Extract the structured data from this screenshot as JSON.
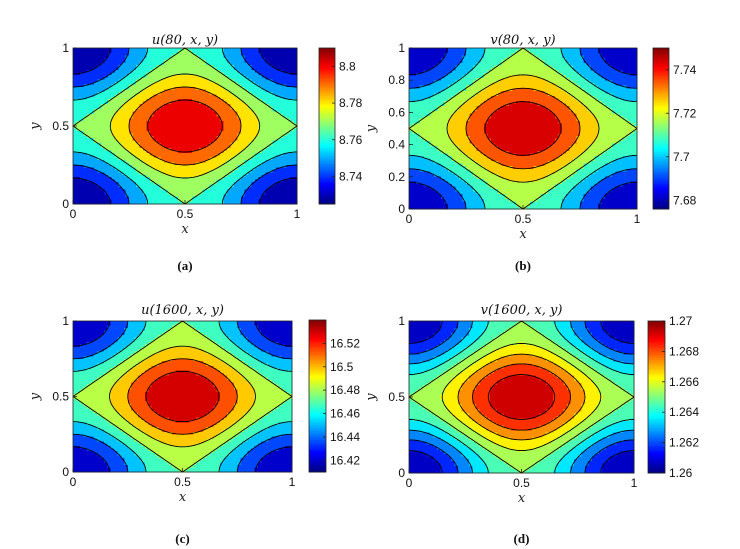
{
  "chart_data": [
    {
      "type": "heatmap",
      "panel": "a",
      "title": "u(80, x, y)",
      "xlabel": "x",
      "ylabel": "y",
      "caption": "(a)",
      "xlim": [
        0,
        1
      ],
      "ylim": [
        0,
        1
      ],
      "xticks": [
        "0",
        "0.5",
        "1"
      ],
      "yticks": [
        "0",
        "0.5",
        "1"
      ],
      "colorbar": {
        "range": [
          8.725,
          8.81
        ],
        "ticks": [
          "8.74",
          "8.76",
          "8.78",
          "8.8"
        ],
        "tick_values": [
          8.74,
          8.76,
          8.78,
          8.8
        ]
      },
      "field": {
        "center": 8.806,
        "corner": 8.724,
        "form": "sinusoidal, maximum at (0.5, 0.5), minima at corners"
      },
      "levels": 8
    },
    {
      "type": "heatmap",
      "panel": "b",
      "title": "v(80, x, y)",
      "xlabel": "x",
      "ylabel": "y",
      "caption": "(b)",
      "xlim": [
        0,
        1
      ],
      "ylim": [
        0,
        1
      ],
      "xticks": [
        "0",
        "0.5",
        "1"
      ],
      "yticks": [
        "0",
        "0.2",
        "0.4",
        "0.6",
        "0.8",
        "1"
      ],
      "colorbar": {
        "range": [
          7.676,
          7.75
        ],
        "ticks": [
          "7.68",
          "7.7",
          "7.72",
          "7.74"
        ],
        "tick_values": [
          7.68,
          7.7,
          7.72,
          7.74
        ]
      },
      "field": {
        "center": 7.748,
        "corner": 7.677,
        "form": "sinusoidal, maximum at (0.5, 0.5), minima at corners"
      },
      "levels": 8
    },
    {
      "type": "heatmap",
      "panel": "c",
      "title": "u(1600, x, y)",
      "xlabel": "x",
      "ylabel": "y",
      "caption": "(c)",
      "xlim": [
        0,
        1
      ],
      "ylim": [
        0,
        1
      ],
      "xticks": [
        "0",
        "0.5",
        "1"
      ],
      "yticks": [
        "0",
        "0.5",
        "1"
      ],
      "colorbar": {
        "range": [
          16.41,
          16.54
        ],
        "ticks": [
          "16.42",
          "16.44",
          "16.46",
          "16.48",
          "16.5",
          "16.52"
        ],
        "tick_values": [
          16.42,
          16.44,
          16.46,
          16.48,
          16.5,
          16.52
        ]
      },
      "field": {
        "center": 16.537,
        "corner": 16.412,
        "form": "sinusoidal, maximum at (0.5, 0.5), minima at corners"
      },
      "levels": 8
    },
    {
      "type": "heatmap",
      "panel": "d",
      "title": "v(1600, x, y)",
      "xlabel": "x",
      "ylabel": "y",
      "caption": "(d)",
      "xlim": [
        0,
        1
      ],
      "ylim": [
        0,
        1
      ],
      "xticks": [
        "0",
        "0.5",
        "1"
      ],
      "yticks": [
        "0",
        "0.5",
        "1"
      ],
      "colorbar": {
        "range": [
          1.26,
          1.27
        ],
        "ticks": [
          "1.26",
          "1.262",
          "1.264",
          "1.266",
          "1.268",
          "1.27"
        ],
        "tick_values": [
          1.26,
          1.262,
          1.264,
          1.266,
          1.268,
          1.27
        ]
      },
      "field": {
        "center": 1.2697,
        "corner": 1.2602,
        "form": "sinusoidal, maximum at (0.5, 0.5), minima at corners"
      },
      "levels": 10
    }
  ]
}
